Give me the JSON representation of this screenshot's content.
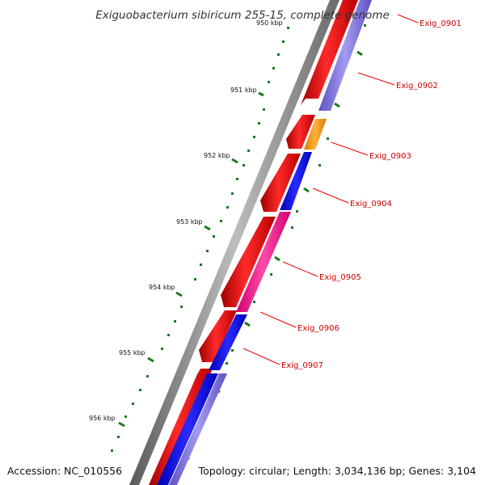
{
  "title": "Exiguobacterium sibiricum 255-15, complete genome",
  "accession": "Accession: NC_010556",
  "topology": "Topology: circular; Length: 3,034,136 bp; Genes: 3,104",
  "scale_labels": [
    "950 kbp",
    "951 kbp",
    "952 kbp",
    "953 kbp",
    "954 kbp",
    "955 kbp",
    "956 kbp"
  ],
  "genes": [
    "Exig_0901",
    "Exig_0902",
    "Exig_0903",
    "Exig_0904",
    "Exig_0905",
    "Exig_0906",
    "Exig_0907"
  ],
  "colors": {
    "backbone": "#8a8a8a",
    "forward": "#ee0000",
    "reverse_blue": "#1010ee",
    "reverse_lavender": "#7b6fd6",
    "orange": "#ff9900",
    "pink": "#ff1493",
    "tick": "#1a7a1a",
    "label": "#cc0000"
  }
}
